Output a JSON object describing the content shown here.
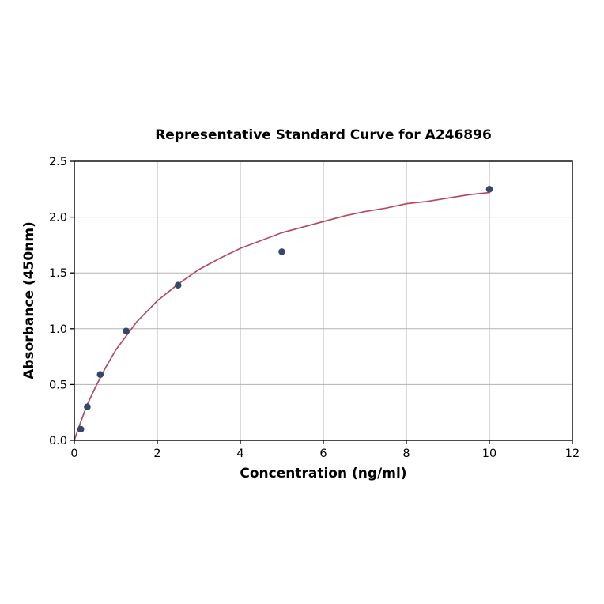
{
  "chart_data": {
    "type": "scatter",
    "title": "Representative Standard Curve for A246896",
    "xlabel": "Concentration (ng/ml)",
    "ylabel": "Absorbance (450nm)",
    "xlim": [
      0,
      12
    ],
    "ylim": [
      0,
      2.5
    ],
    "xticks": [
      "0",
      "2",
      "4",
      "6",
      "8",
      "10",
      "12"
    ],
    "yticks": [
      "0.0",
      "0.5",
      "1.0",
      "1.5",
      "2.0",
      "2.5"
    ],
    "grid": true,
    "grid_color": "#b3b3b3",
    "axis_color": "#000000",
    "points": {
      "name": "standard-points",
      "color": "#35486b",
      "x": [
        0.156,
        0.3125,
        0.625,
        1.25,
        2.5,
        5,
        10
      ],
      "y": [
        0.1,
        0.3,
        0.59,
        0.98,
        1.39,
        1.69,
        2.25
      ]
    },
    "fit_curve": {
      "name": "fitted-curve",
      "color": "#b34a63",
      "x": [
        0,
        0.1,
        0.2,
        0.3,
        0.5,
        0.75,
        1,
        1.5,
        2,
        2.5,
        3,
        3.5,
        4,
        4.5,
        5,
        5.5,
        6,
        6.5,
        7,
        7.5,
        8,
        8.5,
        9,
        9.5,
        10
      ],
      "y": [
        0.0,
        0.11,
        0.21,
        0.31,
        0.47,
        0.65,
        0.81,
        1.06,
        1.25,
        1.4,
        1.53,
        1.63,
        1.72,
        1.79,
        1.86,
        1.91,
        1.96,
        2.01,
        2.05,
        2.08,
        2.12,
        2.14,
        2.17,
        2.2,
        2.22
      ]
    }
  }
}
